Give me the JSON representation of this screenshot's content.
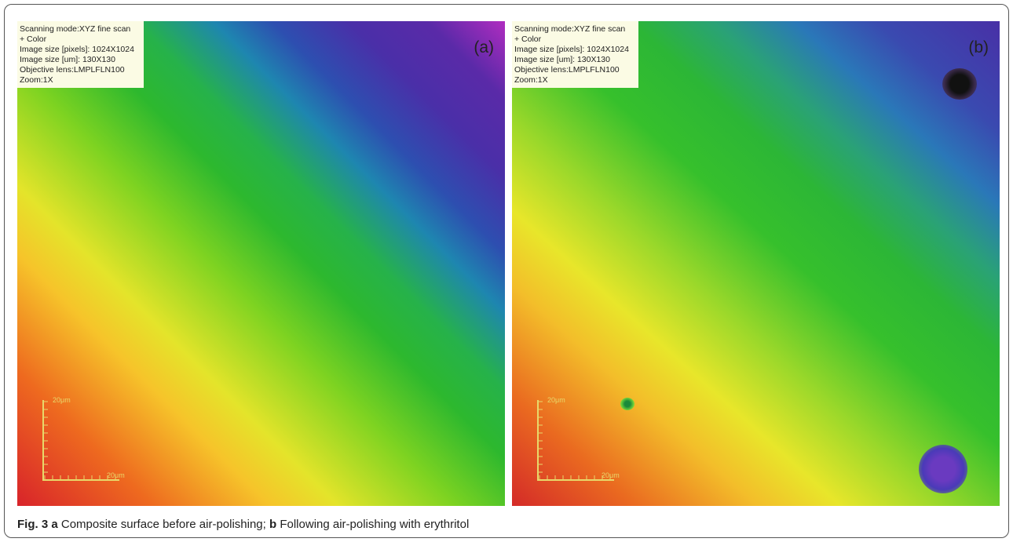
{
  "panels": [
    {
      "label": "(a)",
      "info": [
        "Scanning mode:XYZ fine scan",
        "+ Color",
        "Image size [pixels]: 1024X1024",
        "Image size [um]: 130X130",
        "Objective lens:LMPLFLN100",
        "Zoom:1X"
      ],
      "scale_y": "20μm",
      "scale_x": "20μm"
    },
    {
      "label": "(b)",
      "info": [
        "Scanning mode:XYZ fine scan",
        "+ Color",
        "Image size [pixels]: 1024X1024",
        "Image size [um]: 130X130",
        "Objective lens:LMPLFLN100",
        "Zoom:1X"
      ],
      "scale_y": "20μm",
      "scale_x": "20μm"
    }
  ],
  "caption": {
    "fig": "Fig. 3",
    "a": "a",
    "a_text": "Composite surface before air-polishing;",
    "b": "b",
    "b_text": "Following air-polishing with erythritol"
  }
}
